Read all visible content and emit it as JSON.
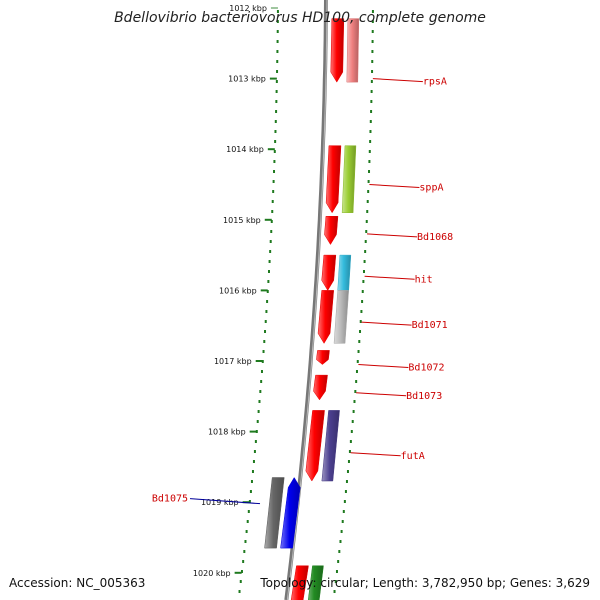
{
  "title": "Bdellovibrio bacteriovorus HD100, complete genome",
  "accession": "Accession: NC_005363",
  "topology": "Topology: circular; Length: 3,782,950 bp; Genes: 3,629",
  "ticks": [
    {
      "kbp": 1012,
      "label": "1012 kbp",
      "faded": true
    },
    {
      "kbp": 1013,
      "label": "1013 kbp"
    },
    {
      "kbp": 1014,
      "label": "1014 kbp"
    },
    {
      "kbp": 1015,
      "label": "1015 kbp"
    },
    {
      "kbp": 1016,
      "label": "1016 kbp"
    },
    {
      "kbp": 1017,
      "label": "1017 kbp"
    },
    {
      "kbp": 1018,
      "label": "1018 kbp"
    },
    {
      "kbp": 1019,
      "label": "1019 kbp"
    },
    {
      "kbp": 1020,
      "label": "1020 kbp"
    }
  ],
  "genes": [
    {
      "id": "rpsA-cds",
      "start": 1012.15,
      "end": 1013.05,
      "strand": "cds",
      "color": "#ff0000"
    },
    {
      "id": "rpsA",
      "start": 1012.15,
      "end": 1013.05,
      "strand": "gene",
      "color": "#f08080",
      "label": "rpsA",
      "label_kbp": 1013.0,
      "label_color": "#cc0000"
    },
    {
      "id": "sppA-cds",
      "start": 1013.95,
      "end": 1014.9,
      "strand": "cds",
      "color": "#ff0000"
    },
    {
      "id": "sppA",
      "start": 1013.95,
      "end": 1014.9,
      "strand": "gene",
      "color": "#9acd32",
      "label": "sppA",
      "label_kbp": 1014.5,
      "label_color": "#cc0000"
    },
    {
      "id": "Bd1068",
      "start": 1014.95,
      "end": 1015.35,
      "strand": "cds",
      "color": "#ff0000",
      "label": "Bd1068",
      "label_kbp": 1015.2,
      "label_color": "#cc0000"
    },
    {
      "id": "hit-cds",
      "start": 1015.5,
      "end": 1016.0,
      "strand": "cds",
      "color": "#ff0000"
    },
    {
      "id": "hit",
      "start": 1015.5,
      "end": 1016.0,
      "strand": "gene",
      "color": "#33bbdd",
      "label": "hit",
      "label_kbp": 1015.8,
      "label_color": "#cc0000"
    },
    {
      "id": "Bd1071-cds",
      "start": 1016.0,
      "end": 1016.75,
      "strand": "cds",
      "color": "#ff0000"
    },
    {
      "id": "Bd1071",
      "start": 1016.0,
      "end": 1016.75,
      "strand": "gene",
      "color": "#bbbbbb",
      "label": "Bd1071",
      "label_kbp": 1016.45,
      "label_color": "#cc0000"
    },
    {
      "id": "Bd1072",
      "start": 1016.85,
      "end": 1017.05,
      "strand": "cds",
      "color": "#ff0000",
      "label": "Bd1072",
      "label_kbp": 1017.05,
      "label_color": "#cc0000"
    },
    {
      "id": "Bd1073",
      "start": 1017.2,
      "end": 1017.55,
      "strand": "cds",
      "color": "#ff0000",
      "label": "Bd1073",
      "label_kbp": 1017.45,
      "label_color": "#cc0000"
    },
    {
      "id": "futA-cds",
      "start": 1017.7,
      "end": 1018.7,
      "strand": "cds",
      "color": "#ff0000"
    },
    {
      "id": "futA",
      "start": 1017.7,
      "end": 1018.7,
      "strand": "gene",
      "color": "#4b3f8f",
      "label": "futA",
      "label_kbp": 1018.3,
      "label_color": "#cc0000"
    },
    {
      "id": "Bd1075-gene",
      "start": 1018.65,
      "end": 1019.65,
      "strand": "left-gene",
      "color": "#666666"
    },
    {
      "id": "Bd1075",
      "start": 1018.65,
      "end": 1019.65,
      "strand": "left-cds",
      "color": "#0000ee",
      "label": "Bd1075",
      "label_kbp": 1018.95,
      "label_color": "#000099",
      "label_side": "left"
    },
    {
      "id": "next-cds",
      "start": 1019.9,
      "end": 1020.6,
      "strand": "cds",
      "color": "#ff0000"
    },
    {
      "id": "next-gene",
      "start": 1019.9,
      "end": 1020.6,
      "strand": "gene",
      "color": "#228b22"
    }
  ]
}
